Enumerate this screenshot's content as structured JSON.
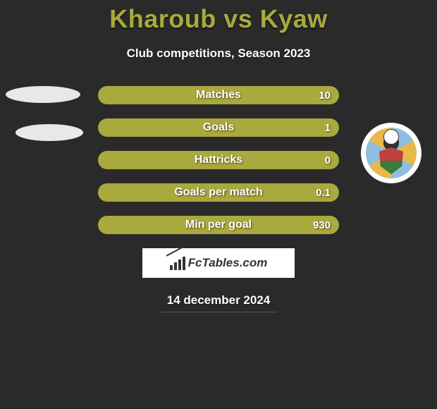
{
  "header": {
    "title": "Kharoub vs Kyaw",
    "subtitle": "Club competitions, Season 2023"
  },
  "stats": {
    "rows": [
      {
        "label": "Matches",
        "value_right": "10"
      },
      {
        "label": "Goals",
        "value_right": "1"
      },
      {
        "label": "Hattricks",
        "value_right": "0"
      },
      {
        "label": "Goals per match",
        "value_right": "0.1"
      },
      {
        "label": "Min per goal",
        "value_right": "930"
      }
    ],
    "bar_color": "#a9a93e",
    "label_color": "#ffffff"
  },
  "footer": {
    "brand": "FcTables.com",
    "date": "14 december 2024"
  },
  "colors": {
    "background": "#2a2a2a",
    "accent": "#a9a93e",
    "text_light": "#ffffff",
    "box_bg": "#ffffff"
  }
}
